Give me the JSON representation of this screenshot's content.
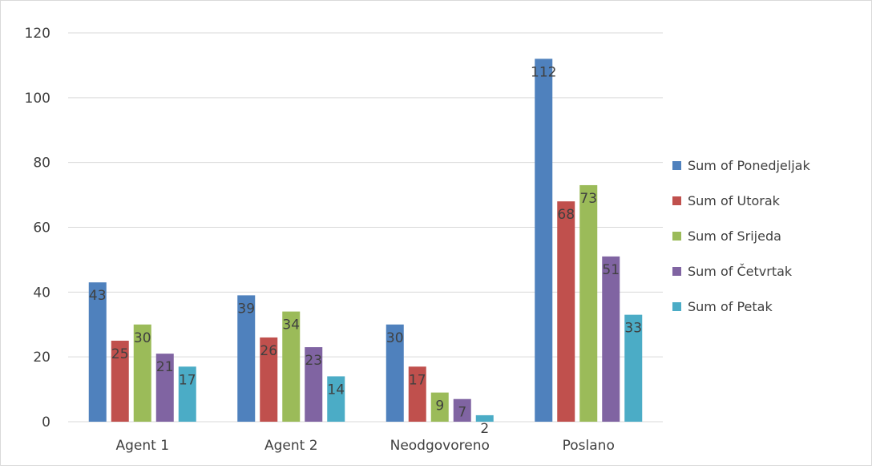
{
  "chart_data": {
    "type": "bar",
    "title": "",
    "xlabel": "",
    "ylabel": "",
    "ylim": [
      0,
      120
    ],
    "yticks": [
      0,
      20,
      40,
      60,
      80,
      100,
      120
    ],
    "grid": true,
    "legend_position": "right",
    "categories": [
      "Agent 1",
      "Agent 2",
      "Neodgovoreno",
      "Poslano"
    ],
    "series": [
      {
        "name": "Sum of Ponedjeljak",
        "color": "#4f81bd",
        "values": [
          43,
          39,
          30,
          112
        ]
      },
      {
        "name": "Sum of Utorak",
        "color": "#c0504d",
        "values": [
          25,
          26,
          17,
          68
        ]
      },
      {
        "name": "Sum of Srijeda",
        "color": "#9bbb59",
        "values": [
          30,
          34,
          9,
          73
        ]
      },
      {
        "name": "Sum of Četvrtak",
        "color": "#8064a2",
        "values": [
          21,
          23,
          7,
          51
        ]
      },
      {
        "name": "Sum of Petak",
        "color": "#4bacc6",
        "values": [
          17,
          14,
          2,
          33
        ]
      }
    ]
  }
}
